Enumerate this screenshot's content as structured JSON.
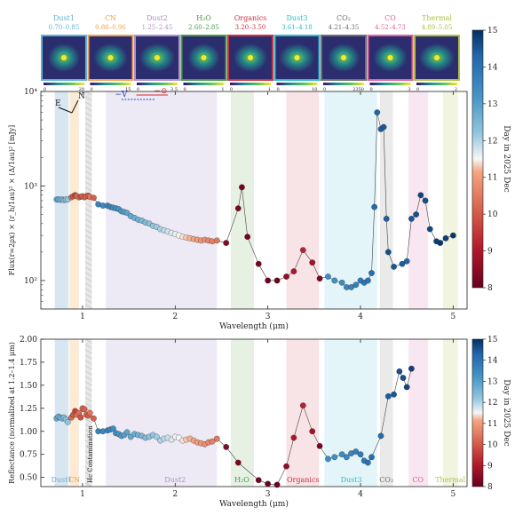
{
  "chart_data": [
    {
      "type": "scatter",
      "panel": "top",
      "ylabel": "Flux(r=2ρx) × (r_h/1au)² × (Δ/1au)² [mJy]",
      "xlabel": "Wavelength (μm)",
      "yscale": "log",
      "ylim": [
        50,
        10000
      ],
      "xlim": [
        0.55,
        5.15
      ],
      "xticks": [
        1,
        2,
        3,
        4,
        5
      ],
      "yticks": [
        {
          "v": 100,
          "label": "10²"
        },
        {
          "v": 1000,
          "label": "10³"
        },
        {
          "v": 10000,
          "label": "10⁴"
        }
      ],
      "colorbar": {
        "label": "Day in 2025 Dec",
        "ticks": [
          8,
          9,
          10,
          11,
          12,
          13,
          14,
          15
        ],
        "range": [
          8,
          15
        ]
      },
      "compass": {
        "north": "N",
        "east": "E"
      },
      "direction_labels": {
        "v": "−V",
        "sun": "−⊙"
      },
      "thumbnails": [
        {
          "name": "Dust1",
          "range": "0.70–0.85",
          "min": "0",
          "max": "20",
          "color": "#5fb0d0"
        },
        {
          "name": "CN",
          "range": "0.86–0.96",
          "min": "0",
          "max": "15",
          "color": "#f0a050"
        },
        {
          "name": "Dust2",
          "range": "1.25–2.45",
          "min": "0",
          "max": "3.5",
          "color": "#b090c8"
        },
        {
          "name": "H₂O",
          "range": "2.60–2.85",
          "min": "0",
          "max": "1",
          "color": "#4a9a4a"
        },
        {
          "name": "Organics",
          "range": "3.20–3.50",
          "min": "0",
          "max": "1",
          "color": "#d03040"
        },
        {
          "name": "Dust3",
          "range": "3.61–4.18",
          "min": "0",
          "max": "10",
          "color": "#30b8c8"
        },
        {
          "name": "CO₂",
          "range": "4.21–4.35",
          "min": "0",
          "max": "2350",
          "color": "#707070"
        },
        {
          "name": "CO",
          "range": "4.52–4.73",
          "min": "0",
          "max": "3",
          "color": "#e060a0"
        },
        {
          "name": "Thermal",
          "range": "4.89–5.05",
          "min": "0",
          "max": "2",
          "color": "#b0c040"
        }
      ],
      "bands": [
        {
          "range": [
            0.7,
            0.85
          ],
          "color": "#a8c8e0"
        },
        {
          "range": [
            0.86,
            0.96
          ],
          "color": "#f8d0a0"
        },
        {
          "range": [
            1.03,
            1.1
          ],
          "color": "#c8c8c8"
        },
        {
          "range": [
            1.25,
            2.45
          ],
          "color": "#d8d0ec"
        },
        {
          "range": [
            2.6,
            2.85
          ],
          "color": "#c8e0c0"
        },
        {
          "range": [
            3.2,
            3.55
          ],
          "color": "#f0c0c8"
        },
        {
          "range": [
            3.61,
            4.18
          ],
          "color": "#c0e8f0"
        },
        {
          "range": [
            4.21,
            4.35
          ],
          "color": "#d0d0d0"
        },
        {
          "range": [
            4.52,
            4.73
          ],
          "color": "#f0c8e0"
        },
        {
          "range": [
            4.89,
            5.05
          ],
          "color": "#e0e8b8"
        }
      ],
      "series": [
        {
          "x": [
            0.72,
            0.74,
            0.76,
            0.78,
            0.8,
            0.82,
            0.84,
            0.88,
            0.9,
            0.92,
            0.94,
            0.96,
            0.98,
            1.0,
            1.02,
            1.04,
            1.06,
            1.08,
            1.12,
            1.17,
            1.22,
            1.27,
            1.3,
            1.33,
            1.36,
            1.39,
            1.42,
            1.45,
            1.48,
            1.52,
            1.56,
            1.6,
            1.64,
            1.68,
            1.72,
            1.76,
            1.8,
            1.84,
            1.88,
            1.92,
            1.96,
            2.0,
            2.04,
            2.08,
            2.12,
            2.16,
            2.2,
            2.24,
            2.28,
            2.32,
            2.36,
            2.4,
            2.45,
            2.55,
            2.68,
            2.72,
            2.78,
            2.9,
            3.0,
            3.1,
            3.2,
            3.28,
            3.38,
            3.48,
            3.56,
            3.65,
            3.72,
            3.8,
            3.85,
            3.9,
            3.95,
            4.0,
            4.04,
            4.08,
            4.12,
            4.15,
            4.18,
            4.22,
            4.25,
            4.28,
            4.3,
            4.36,
            4.45,
            4.5,
            4.55,
            4.6,
            4.65,
            4.7,
            4.75,
            4.82,
            4.86,
            4.92,
            5.0
          ],
          "y": [
            720,
            720,
            715,
            720,
            710,
            720,
            720,
            760,
            780,
            800,
            780,
            760,
            770,
            780,
            760,
            780,
            790,
            770,
            750,
            640,
            620,
            620,
            600,
            590,
            580,
            570,
            540,
            530,
            520,
            480,
            460,
            440,
            430,
            410,
            400,
            380,
            370,
            350,
            340,
            330,
            320,
            310,
            300,
            290,
            285,
            280,
            275,
            270,
            265,
            270,
            265,
            260,
            265,
            250,
            580,
            970,
            290,
            150,
            100,
            100,
            110,
            125,
            210,
            155,
            105,
            110,
            100,
            95,
            85,
            85,
            90,
            100,
            95,
            100,
            120,
            600,
            6000,
            4000,
            4200,
            450,
            200,
            140,
            150,
            160,
            450,
            500,
            800,
            700,
            350,
            260,
            250,
            280,
            300
          ],
          "day": [
            12.8,
            12.7,
            12.6,
            12.5,
            12.4,
            12.3,
            12.2,
            10.2,
            10.0,
            9.6,
            10.4,
            10.3,
            9.9,
            10.2,
            10.1,
            10.3,
            10.0,
            10.4,
            10.1,
            13.6,
            13.5,
            13.6,
            13.5,
            13.4,
            13.3,
            13.2,
            13.1,
            13.0,
            12.9,
            12.8,
            12.7,
            12.6,
            12.5,
            12.4,
            12.3,
            12.2,
            12.1,
            12.0,
            11.9,
            11.8,
            11.7,
            11.6,
            11.5,
            11.4,
            11.3,
            11.2,
            11.1,
            11.0,
            10.9,
            10.8,
            10.7,
            10.6,
            10.5,
            8.4,
            8.3,
            8.2,
            8.2,
            8.2,
            8.1,
            8.1,
            8.6,
            9.0,
            9.2,
            8.8,
            8.3,
            13.4,
            13.3,
            13.4,
            13.5,
            13.6,
            13.7,
            13.8,
            13.9,
            14.0,
            14.1,
            14.2,
            14.3,
            14.4,
            14.5,
            14.4,
            14.6,
            14.5,
            14.4,
            14.3,
            14.5,
            14.6,
            14.7,
            14.6,
            14.7,
            14.8,
            14.9,
            14.8,
            14.9
          ]
        }
      ]
    },
    {
      "type": "scatter",
      "panel": "bottom",
      "ylabel": "Reflectance (normalized at 1.2–1.4 μm)",
      "xlabel": "Wavelength (μm)",
      "ylim": [
        0.4,
        2.0
      ],
      "xlim": [
        0.55,
        5.15
      ],
      "xticks": [
        1,
        2,
        3,
        4,
        5
      ],
      "yticks": [
        0.5,
        0.75,
        1.0,
        1.25,
        1.5,
        1.75,
        2.0
      ],
      "colorbar": {
        "label": "Day in 2025 Dec",
        "ticks": [
          8,
          9,
          10,
          11,
          12,
          13,
          14,
          15
        ],
        "range": [
          8,
          15
        ]
      },
      "band_labels": [
        "Dust1",
        "CN",
        "Hc Contamination",
        "Dust2",
        "H₂O",
        "Organics",
        "Dust3",
        "CO₂",
        "CO",
        "Thermal"
      ],
      "series": [
        {
          "x": [
            0.72,
            0.74,
            0.76,
            0.78,
            0.8,
            0.82,
            0.84,
            0.88,
            0.9,
            0.92,
            0.94,
            0.96,
            0.98,
            1.0,
            1.02,
            1.04,
            1.06,
            1.08,
            1.12,
            1.17,
            1.22,
            1.27,
            1.3,
            1.33,
            1.36,
            1.39,
            1.42,
            1.45,
            1.48,
            1.52,
            1.56,
            1.6,
            1.64,
            1.68,
            1.72,
            1.76,
            1.8,
            1.84,
            1.88,
            1.92,
            1.96,
            2.0,
            2.04,
            2.08,
            2.12,
            2.16,
            2.2,
            2.24,
            2.28,
            2.32,
            2.36,
            2.4,
            2.45,
            2.55,
            2.68,
            2.9,
            3.0,
            3.1,
            3.2,
            3.28,
            3.38,
            3.48,
            3.56,
            3.65,
            3.72,
            3.8,
            3.85,
            3.9,
            3.95,
            4.0,
            4.04,
            4.08,
            4.12,
            4.22,
            4.3,
            4.36,
            4.42,
            4.46,
            4.5,
            4.55
          ],
          "y": [
            1.14,
            1.16,
            1.15,
            1.14,
            1.15,
            1.13,
            1.1,
            1.15,
            1.18,
            1.22,
            1.18,
            1.2,
            1.15,
            1.25,
            1.24,
            1.18,
            1.17,
            1.2,
            1.14,
            1.0,
            1.0,
            1.01,
            1.02,
            1.03,
            0.98,
            0.97,
            0.95,
            0.96,
            0.99,
            0.94,
            0.97,
            0.96,
            0.95,
            0.93,
            0.94,
            0.96,
            0.94,
            0.9,
            0.92,
            0.93,
            0.91,
            0.94,
            0.93,
            0.9,
            0.91,
            0.92,
            0.9,
            0.88,
            0.87,
            0.86,
            0.88,
            0.89,
            0.92,
            0.83,
            0.66,
            0.47,
            0.43,
            0.42,
            0.62,
            0.93,
            1.28,
            1.0,
            0.84,
            0.7,
            0.72,
            0.75,
            0.72,
            0.76,
            0.78,
            0.75,
            0.68,
            0.66,
            0.72,
            0.95,
            1.38,
            1.4,
            1.65,
            1.58,
            1.48,
            1.68
          ],
          "day": [
            12.8,
            12.7,
            12.6,
            12.5,
            12.4,
            12.3,
            12.2,
            10.2,
            10.0,
            9.6,
            10.4,
            10.3,
            9.9,
            10.2,
            10.1,
            10.3,
            10.0,
            10.4,
            10.1,
            13.6,
            13.5,
            13.6,
            13.5,
            13.4,
            13.3,
            13.2,
            13.1,
            13.0,
            12.9,
            12.8,
            12.7,
            12.6,
            12.5,
            12.4,
            12.3,
            12.2,
            12.1,
            12.0,
            11.9,
            11.8,
            11.7,
            11.6,
            11.5,
            11.4,
            11.3,
            11.2,
            11.1,
            11.0,
            10.9,
            10.8,
            10.7,
            10.6,
            10.5,
            8.4,
            8.3,
            8.2,
            8.1,
            8.1,
            8.6,
            9.0,
            9.2,
            8.8,
            8.3,
            13.4,
            13.3,
            13.4,
            13.5,
            13.6,
            13.7,
            13.8,
            13.9,
            14.0,
            14.1,
            14.2,
            14.4,
            14.5,
            14.6,
            14.6,
            14.7,
            14.8
          ]
        }
      ]
    }
  ]
}
